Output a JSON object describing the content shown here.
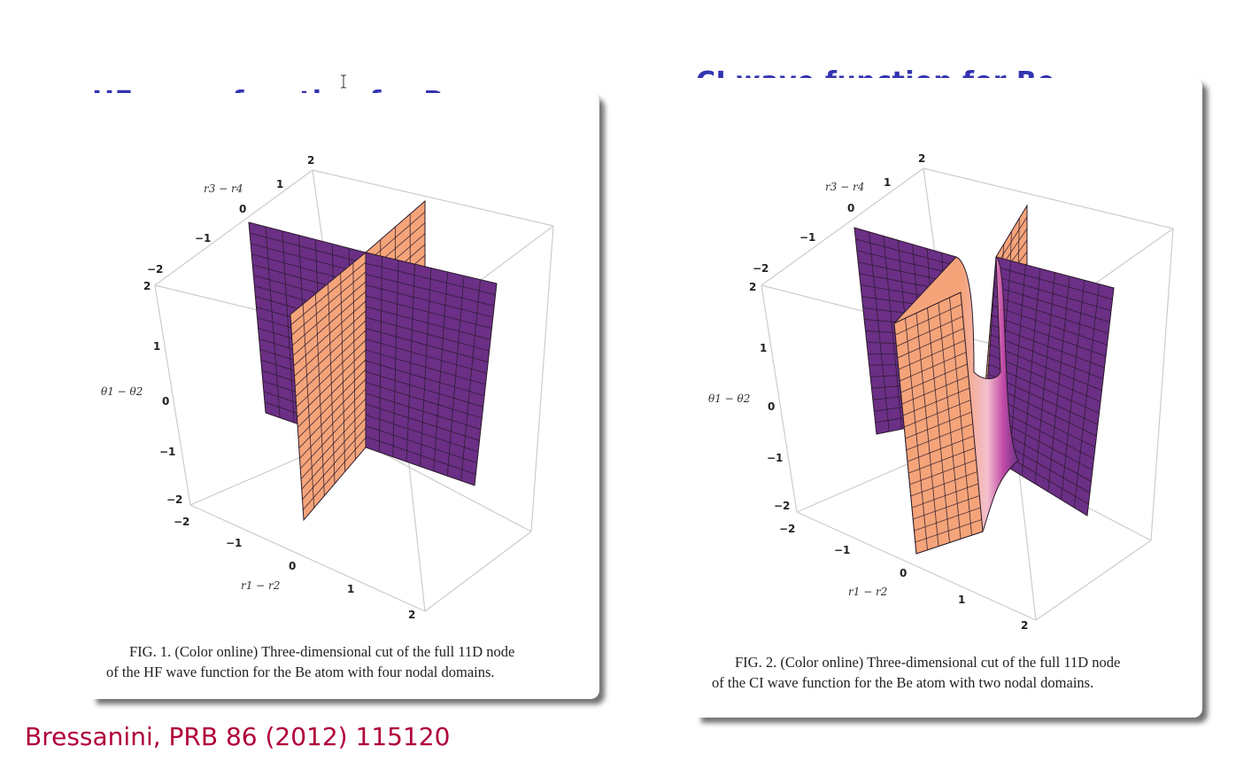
{
  "slide": {
    "left_title": "HF wave function for Be",
    "right_title": "CI wave function for Be",
    "citation": "Bressanini, PRB 86 (2012) 115120"
  },
  "figures": [
    {
      "caption_line1": "FIG. 1.  (Color online) Three-dimensional cut of the full 11D node",
      "caption_line2": "of the HF wave function for the Be atom with four nodal domains.",
      "axis_labels": {
        "depth": "r3 − r4",
        "vertical": "θ1 − θ2",
        "horizontal": "r1 − r2"
      },
      "depth_ticks": [
        "2",
        "1",
        "0",
        "−1",
        "−2"
      ],
      "vertical_ticks": [
        "2",
        "1",
        "0",
        "−1",
        "−2"
      ],
      "horizontal_ticks": [
        "−2",
        "−1",
        "0",
        "1",
        "2"
      ]
    },
    {
      "caption_line1": "FIG. 2.  (Color online) Three-dimensional cut of the full 11D node",
      "caption_line2": "of the CI wave function for the Be atom with two nodal domains.",
      "axis_labels": {
        "depth": "r3 − r4",
        "vertical": "θ1 − θ2",
        "horizontal": "r1 − r2"
      },
      "depth_ticks": [
        "2",
        "1",
        "0",
        "−1",
        "−2"
      ],
      "vertical_ticks": [
        "2",
        "1",
        "0",
        "−1",
        "−2"
      ],
      "horizontal_ticks": [
        "−2",
        "−1",
        "0",
        "1",
        "2"
      ]
    }
  ],
  "colors": {
    "title": "#3333b2",
    "citation": "#b0003a",
    "purple_surface": "#6b2f86",
    "orange_surface": "#f5a47a"
  },
  "cursor_icon": "text-cursor-icon"
}
